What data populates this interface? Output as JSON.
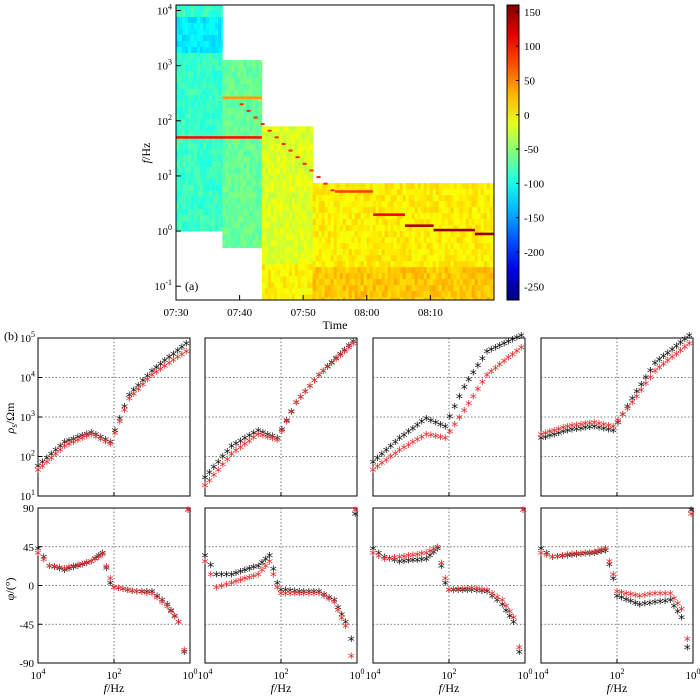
{
  "colors": {
    "black_series": "#111111",
    "red_series": "#e8282b"
  },
  "chart_data": [
    {
      "type": "heatmap",
      "panel_label": "(a)",
      "title": "",
      "xlabel": "Time",
      "ylabel": "f/Hz",
      "ylabel_italic": "f",
      "ylabel_unit": "/Hz",
      "x_tick_labels": [
        "07:30",
        "07:40",
        "07:50",
        "08:00",
        "08:10"
      ],
      "x_tick_minutes": [
        0,
        10,
        20,
        30,
        40
      ],
      "x_range_minutes": [
        0,
        50
      ],
      "y_scale": "log",
      "y_tick_labels": [
        "10^-1",
        "10^0",
        "10^1",
        "10^2",
        "10^3",
        "10^4"
      ],
      "y_range_log10": [
        -1.25,
        4.1
      ],
      "colorbar": {
        "range": [
          -270,
          160
        ],
        "tick_values": [
          150,
          100,
          50,
          0,
          -50,
          -100,
          -150,
          -200,
          -250
        ],
        "tick_labels": [
          "150",
          "100",
          "50",
          "0",
          "-50",
          "-100",
          "-150",
          "-200",
          "-250"
        ],
        "colormap": "jet"
      },
      "recording_blocks": [
        {
          "t_start_min": 0,
          "t_end_min": 7.3,
          "log10_f_min": 0.0,
          "log10_f_max": 4.1,
          "level_db": -85
        },
        {
          "t_start_min": 7.3,
          "t_end_min": 13.5,
          "log10_f_min": -0.3,
          "log10_f_max": 3.1,
          "level_db": -65
        },
        {
          "t_start_min": 13.5,
          "t_end_min": 21.5,
          "log10_f_min": -1.25,
          "log10_f_max": 1.9,
          "level_db": -15
        },
        {
          "t_start_min": 21.5,
          "t_end_min": 50,
          "log10_f_min": -1.25,
          "log10_f_max": 0.87,
          "level_db": 5
        }
      ],
      "emission_lines": [
        {
          "t_start_min": 0,
          "t_end_min": 13.5,
          "log10_f": 1.7,
          "level_db": 100
        },
        {
          "t_start_min": 7.3,
          "t_end_min": 13.5,
          "log10_f": 2.42,
          "level_db": 40
        },
        {
          "t_start_min": 25,
          "t_end_min": 31,
          "log10_f": 0.72,
          "level_db": 80
        },
        {
          "t_start_min": 31,
          "t_end_min": 36,
          "log10_f": 0.3,
          "level_db": 110
        },
        {
          "t_start_min": 36,
          "t_end_min": 40.5,
          "log10_f": 0.1,
          "level_db": 140
        },
        {
          "t_start_min": 40.5,
          "t_end_min": 47,
          "log10_f": 0.02,
          "level_db": 150
        },
        {
          "t_start_min": 47,
          "t_end_min": 50,
          "log10_f": -0.05,
          "level_db": 150
        }
      ]
    },
    {
      "type": "scatter",
      "panel_label": "(b)",
      "title": "",
      "xlabel_italic": "f",
      "xlabel_unit": "/Hz",
      "x_scale": "log_reversed",
      "x_range_log10": [
        4,
        0
      ],
      "x_tick_labels": [
        "10^4",
        "10^2",
        "10^0"
      ],
      "rho_axis": {
        "label": "ρs/Ωm",
        "scale": "log",
        "range_log10": [
          1,
          5
        ],
        "tick_labels": [
          "10^1",
          "10^2",
          "10^3",
          "10^4",
          "10^5"
        ]
      },
      "phase_axis": {
        "label": "φ/(°)",
        "range": [
          -90,
          90
        ],
        "tick_values": [
          90,
          45,
          0,
          -45,
          -90
        ],
        "tick_labels": [
          "90",
          "45",
          "0",
          "-45",
          "-90"
        ]
      },
      "marker": "*",
      "series_names": [
        "black",
        "red"
      ],
      "stations": [
        {
          "rho_black": [
            [
              4,
              1.7
            ],
            [
              3.3,
              2.3
            ],
            [
              2.6,
              2.55
            ],
            [
              2.1,
              2.3
            ],
            [
              1.6,
              3.5
            ],
            [
              1.0,
              4.1
            ],
            [
              0.1,
              4.8
            ]
          ],
          "rho_red": [
            [
              4,
              1.6
            ],
            [
              3.3,
              2.2
            ],
            [
              2.6,
              2.5
            ],
            [
              2.1,
              2.25
            ],
            [
              1.6,
              3.4
            ],
            [
              1.0,
              4.0
            ],
            [
              0.1,
              4.6
            ]
          ],
          "phase_black": [
            [
              4,
              40
            ],
            [
              3.7,
              20
            ],
            [
              3.3,
              15
            ],
            [
              2.6,
              25
            ],
            [
              2.3,
              35
            ],
            [
              2.1,
              0
            ],
            [
              2.0,
              -5
            ],
            [
              1.4,
              -10
            ],
            [
              1.0,
              -10
            ],
            [
              0.6,
              -25
            ],
            [
              0.3,
              -45
            ],
            [
              0.15,
              -80
            ],
            [
              0.05,
              85
            ]
          ],
          "phase_red": [
            [
              4,
              35
            ],
            [
              3.7,
              20
            ],
            [
              3.3,
              17
            ],
            [
              2.6,
              25
            ],
            [
              2.3,
              33
            ],
            [
              2.1,
              5
            ],
            [
              2.0,
              -5
            ],
            [
              1.4,
              -10
            ],
            [
              1.0,
              -12
            ],
            [
              0.6,
              -27
            ],
            [
              0.3,
              -45
            ],
            [
              0.15,
              -78
            ],
            [
              0.05,
              85
            ]
          ]
        },
        {
          "rho_black": [
            [
              4,
              1.4
            ],
            [
              3.3,
              2.2
            ],
            [
              2.6,
              2.6
            ],
            [
              2.1,
              2.4
            ],
            [
              1.6,
              3.3
            ],
            [
              1.0,
              4.0
            ],
            [
              0.1,
              4.85
            ]
          ],
          "rho_red": [
            [
              4,
              1.2
            ],
            [
              3.3,
              2.0
            ],
            [
              2.6,
              2.5
            ],
            [
              2.1,
              2.35
            ],
            [
              1.6,
              3.3
            ],
            [
              1.0,
              4.0
            ],
            [
              0.1,
              4.8
            ]
          ],
          "phase_black": [
            [
              4,
              32
            ],
            [
              3.7,
              10
            ],
            [
              3.3,
              10
            ],
            [
              2.6,
              20
            ],
            [
              2.3,
              32
            ],
            [
              2.1,
              0
            ],
            [
              2.0,
              -8
            ],
            [
              1.4,
              -10
            ],
            [
              1.0,
              -10
            ],
            [
              0.6,
              -20
            ],
            [
              0.3,
              -45
            ],
            [
              0.15,
              -65
            ],
            [
              0.05,
              80
            ]
          ],
          "phase_red": [
            [
              4,
              25
            ],
            [
              3.7,
              -5
            ],
            [
              3.3,
              0
            ],
            [
              2.6,
              10
            ],
            [
              2.3,
              25
            ],
            [
              2.1,
              -5
            ],
            [
              2.0,
              -12
            ],
            [
              1.4,
              -12
            ],
            [
              1.0,
              -12
            ],
            [
              0.6,
              -22
            ],
            [
              0.3,
              -50
            ],
            [
              0.15,
              -85
            ],
            [
              0.05,
              85
            ]
          ]
        },
        {
          "rho_black": [
            [
              4,
              1.8
            ],
            [
              3.3,
              2.4
            ],
            [
              2.6,
              2.9
            ],
            [
              2.1,
              2.7
            ],
            [
              1.6,
              3.7
            ],
            [
              1.0,
              4.6
            ],
            [
              0.1,
              5.0
            ]
          ],
          "rho_red": [
            [
              4,
              1.6
            ],
            [
              3.3,
              2.1
            ],
            [
              2.6,
              2.5
            ],
            [
              2.1,
              2.4
            ],
            [
              1.6,
              3.1
            ],
            [
              1.0,
              4.0
            ],
            [
              0.1,
              4.7
            ]
          ],
          "phase_black": [
            [
              4,
              40
            ],
            [
              3.7,
              30
            ],
            [
              3.3,
              25
            ],
            [
              2.6,
              28
            ],
            [
              2.3,
              40
            ],
            [
              2.1,
              0
            ],
            [
              2.0,
              -8
            ],
            [
              1.4,
              -8
            ],
            [
              1.0,
              -10
            ],
            [
              0.6,
              -25
            ],
            [
              0.3,
              -45
            ],
            [
              0.15,
              -80
            ],
            [
              0.05,
              85
            ]
          ],
          "phase_red": [
            [
              4,
              35
            ],
            [
              3.7,
              28
            ],
            [
              3.3,
              30
            ],
            [
              2.6,
              35
            ],
            [
              2.3,
              42
            ],
            [
              2.1,
              5
            ],
            [
              2.0,
              -8
            ],
            [
              1.4,
              -6
            ],
            [
              1.0,
              -8
            ],
            [
              0.6,
              -20
            ],
            [
              0.3,
              -40
            ],
            [
              0.15,
              -75
            ],
            [
              0.05,
              85
            ]
          ]
        },
        {
          "rho_black": [
            [
              4,
              2.4
            ],
            [
              3.3,
              2.6
            ],
            [
              2.6,
              2.7
            ],
            [
              2.1,
              2.6
            ],
            [
              1.6,
              3.4
            ],
            [
              1.0,
              4.3
            ],
            [
              0.1,
              5.0
            ]
          ],
          "rho_red": [
            [
              4,
              2.5
            ],
            [
              3.3,
              2.7
            ],
            [
              2.6,
              2.8
            ],
            [
              2.1,
              2.7
            ],
            [
              1.6,
              3.3
            ],
            [
              1.0,
              4.1
            ],
            [
              0.1,
              4.8
            ]
          ],
          "phase_black": [
            [
              4,
              40
            ],
            [
              3.7,
              30
            ],
            [
              3.3,
              32
            ],
            [
              2.6,
              35
            ],
            [
              2.3,
              38
            ],
            [
              2.1,
              5
            ],
            [
              2.0,
              -15
            ],
            [
              1.4,
              -25
            ],
            [
              1.0,
              -22
            ],
            [
              0.6,
              -20
            ],
            [
              0.3,
              -40
            ],
            [
              0.15,
              -75
            ],
            [
              0.05,
              85
            ]
          ],
          "phase_red": [
            [
              4,
              35
            ],
            [
              3.7,
              30
            ],
            [
              3.3,
              33
            ],
            [
              2.6,
              36
            ],
            [
              2.3,
              40
            ],
            [
              2.1,
              10
            ],
            [
              2.0,
              -10
            ],
            [
              1.4,
              -15
            ],
            [
              1.0,
              -12
            ],
            [
              0.6,
              -12
            ],
            [
              0.3,
              -30
            ],
            [
              0.15,
              -65
            ],
            [
              0.05,
              80
            ]
          ]
        }
      ]
    }
  ]
}
